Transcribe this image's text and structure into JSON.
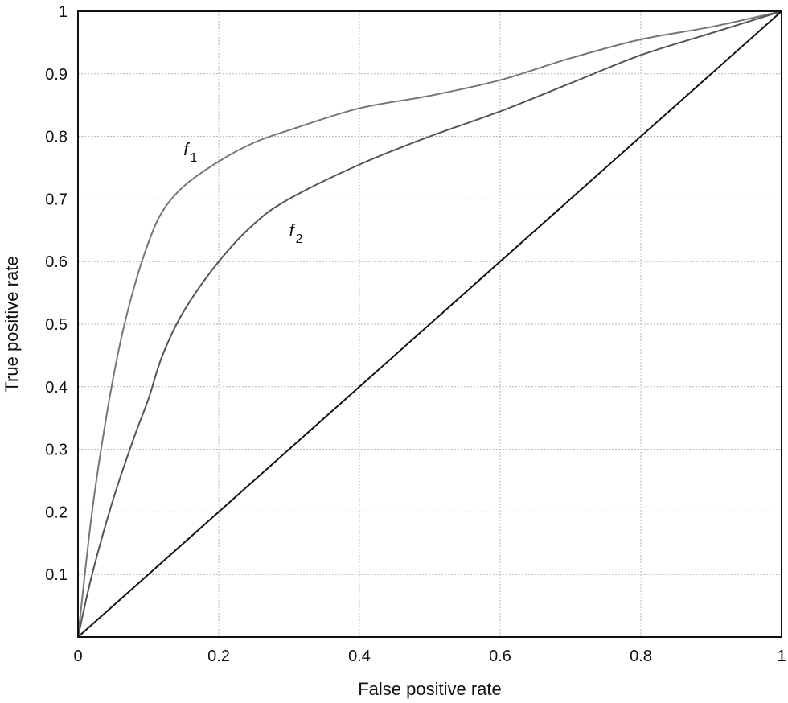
{
  "chart_data": {
    "type": "line",
    "xlabel": "False positive rate",
    "ylabel": "True positive rate",
    "xlim": [
      0,
      1
    ],
    "ylim": [
      0,
      1
    ],
    "grid": true,
    "xticks": [
      0,
      0.2,
      0.4,
      0.6,
      0.8,
      1
    ],
    "xtick_labels": [
      "0",
      "0.2",
      "0.4",
      "0.6",
      "0.8",
      "1"
    ],
    "yticks": [
      0.1,
      0.2,
      0.3,
      0.4,
      0.5,
      0.6,
      0.7,
      0.8,
      0.9,
      1
    ],
    "ytick_labels": [
      "0.1",
      "0.2",
      "0.3",
      "0.4",
      "0.5",
      "0.6",
      "0.7",
      "0.8",
      "0.9",
      "1"
    ],
    "series": [
      {
        "label": "f",
        "label_sub": "1",
        "label_at": [
          0.15,
          0.77
        ],
        "color": "#777777",
        "x": [
          0,
          0.02,
          0.04,
          0.06,
          0.08,
          0.1,
          0.12,
          0.15,
          0.2,
          0.25,
          0.3,
          0.4,
          0.5,
          0.6,
          0.7,
          0.8,
          0.9,
          1
        ],
        "y": [
          0,
          0.2,
          0.35,
          0.47,
          0.56,
          0.63,
          0.68,
          0.72,
          0.76,
          0.79,
          0.81,
          0.845,
          0.865,
          0.89,
          0.925,
          0.955,
          0.975,
          1
        ]
      },
      {
        "label": "f",
        "label_sub": "2",
        "label_at": [
          0.3,
          0.64
        ],
        "color": "#555555",
        "x": [
          0,
          0.02,
          0.05,
          0.08,
          0.1,
          0.12,
          0.15,
          0.2,
          0.25,
          0.3,
          0.4,
          0.5,
          0.6,
          0.7,
          0.8,
          0.9,
          1
        ],
        "y": [
          0,
          0.1,
          0.22,
          0.32,
          0.38,
          0.45,
          0.52,
          0.6,
          0.66,
          0.7,
          0.755,
          0.8,
          0.84,
          0.885,
          0.93,
          0.965,
          1
        ]
      },
      {
        "color": "#111111",
        "x": [
          0,
          1
        ],
        "y": [
          0,
          1
        ]
      }
    ]
  }
}
